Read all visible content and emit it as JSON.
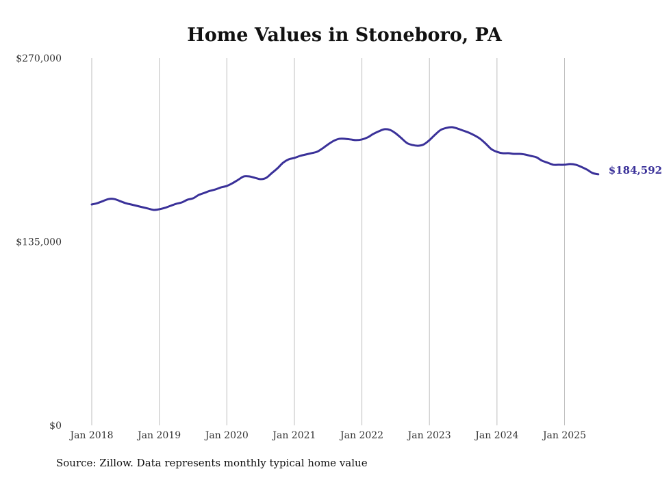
{
  "chart_data": {
    "type": "line",
    "title": "Home Values in Stoneboro, PA",
    "xlabel": "",
    "ylabel": "",
    "ylim": [
      0,
      270000
    ],
    "y_ticks": [
      0,
      135000,
      270000
    ],
    "y_tick_labels": [
      "$0",
      "$135,000",
      "$270,000"
    ],
    "x_tick_labels": [
      "Jan 2018",
      "Jan 2019",
      "Jan 2020",
      "Jan 2021",
      "Jan 2022",
      "Jan 2023",
      "Jan 2024",
      "Jan 2025"
    ],
    "x_start": "Jan 2018",
    "x_end": "Jul 2025",
    "grid": "vertical",
    "series": [
      {
        "name": "Typical home value",
        "color": "#3a3199",
        "end_label": "$184,592",
        "values": [
          162400,
          163400,
          164900,
          166400,
          166400,
          164900,
          163400,
          162400,
          161400,
          160400,
          159400,
          158400,
          158900,
          159900,
          161400,
          162900,
          163900,
          165900,
          166900,
          169400,
          170900,
          172400,
          173500,
          175000,
          176000,
          178000,
          180500,
          183000,
          183000,
          182000,
          181000,
          182000,
          185500,
          189000,
          193100,
          195600,
          196600,
          198100,
          199100,
          200100,
          201100,
          203600,
          206600,
          209200,
          210700,
          210700,
          210200,
          209700,
          210200,
          211700,
          214200,
          216200,
          217700,
          217200,
          214700,
          211200,
          207600,
          206100,
          205600,
          206600,
          209700,
          213700,
          217200,
          218700,
          219200,
          218200,
          216700,
          215200,
          213200,
          210700,
          207100,
          203100,
          201100,
          200100,
          200100,
          199600,
          199600,
          199100,
          198100,
          197100,
          194600,
          193100,
          191600,
          191600,
          191600,
          192100,
          191600,
          190000,
          188000,
          185500,
          184592
        ]
      }
    ]
  },
  "source_note": "Source: Zillow. Data represents monthly typical home value"
}
